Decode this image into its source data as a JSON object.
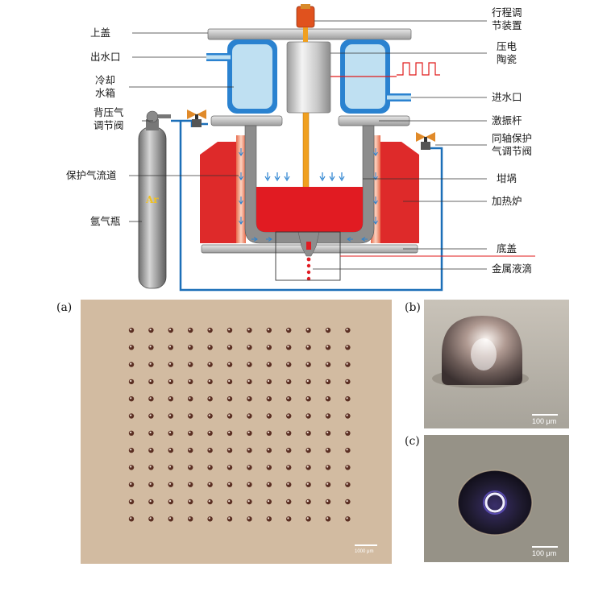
{
  "diagram": {
    "labels": {
      "stroke_adjuster": [
        "行程调",
        "节装置"
      ],
      "top_cover": "上盖",
      "water_outlet": "出水口",
      "piezo": [
        "压电",
        "陶瓷"
      ],
      "cooling_tank": [
        "冷却",
        "水箱"
      ],
      "water_inlet": "进水口",
      "back_pressure_valve": [
        "背压气",
        "调节阀"
      ],
      "vibrating_rod": "激振杆",
      "coaxial_valve": [
        "同轴保护",
        "气调节阀"
      ],
      "gas_channel": "保护气流道",
      "crucible": "坩埚",
      "furnace": "加热炉",
      "argon_bottle": "氩气瓶",
      "bottom_cover": "底盖",
      "droplet": "金属液滴",
      "ar_mark": "Ar"
    },
    "colors": {
      "water": "#bfe0f2",
      "water_frame": "#2a82d0",
      "melt": "#e11b22",
      "furnace": "#de2a2a",
      "rod": "#f0a020",
      "pipe": "#1c6fb8",
      "steel": "#8d8d8d"
    }
  },
  "photos": {
    "a": {
      "panel": "(a)",
      "scale_bar": "1000 μm",
      "grid_rows": 12,
      "grid_cols": 12
    },
    "b": {
      "panel": "(b)",
      "scale_bar": "100 μm"
    },
    "c": {
      "panel": "(c)",
      "scale_bar": "100 μm"
    }
  }
}
